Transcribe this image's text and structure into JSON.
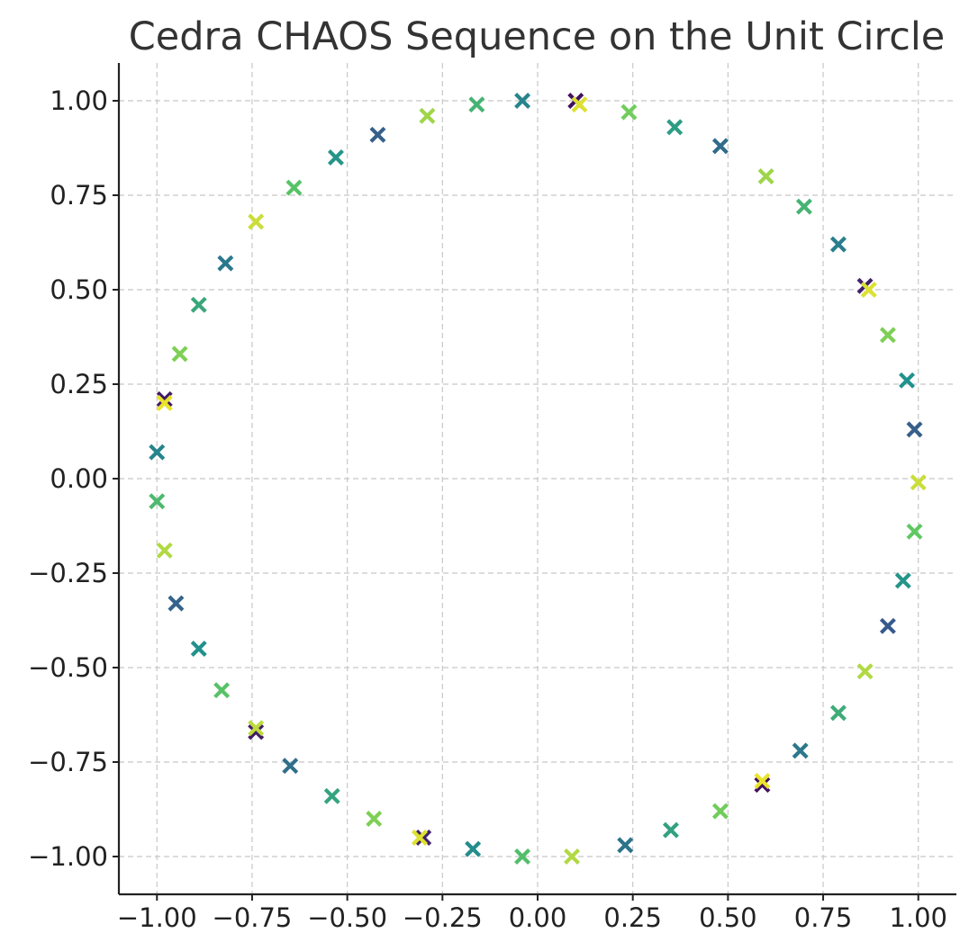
{
  "chart_data": {
    "type": "scatter",
    "title": "Cedra CHAOS Sequence on the Unit Circle",
    "xlabel": "",
    "ylabel": "",
    "xlim": [
      -1.1,
      1.1
    ],
    "ylim": [
      -1.1,
      1.1
    ],
    "grid": true,
    "marker": "x",
    "colormap": "viridis",
    "x_ticks": [
      "−1.00",
      "−0.75",
      "−0.50",
      "−0.25",
      "0.00",
      "0.25",
      "0.50",
      "0.75",
      "1.00"
    ],
    "y_ticks": [
      "1.00",
      "0.75",
      "0.50",
      "0.25",
      "0.00",
      "−0.25",
      "−0.50",
      "−0.75",
      "−1.00"
    ],
    "x_tick_values": [
      -1.0,
      -0.75,
      -0.5,
      -0.25,
      0.0,
      0.25,
      0.5,
      0.75,
      1.0
    ],
    "y_tick_values": [
      1.0,
      0.75,
      0.5,
      0.25,
      0.0,
      -0.25,
      -0.5,
      -0.75,
      -1.0
    ],
    "points": [
      {
        "x": -0.04,
        "y": 1.0,
        "c": 0.45
      },
      {
        "x": 0.1,
        "y": 1.0,
        "c": 0.05
      },
      {
        "x": 0.11,
        "y": 0.99,
        "c": 0.95
      },
      {
        "x": 0.24,
        "y": 0.97,
        "c": 0.78
      },
      {
        "x": 0.36,
        "y": 0.93,
        "c": 0.55
      },
      {
        "x": 0.48,
        "y": 0.88,
        "c": 0.35
      },
      {
        "x": 0.6,
        "y": 0.8,
        "c": 0.85
      },
      {
        "x": 0.7,
        "y": 0.72,
        "c": 0.65
      },
      {
        "x": 0.79,
        "y": 0.62,
        "c": 0.42
      },
      {
        "x": 0.86,
        "y": 0.51,
        "c": 0.1
      },
      {
        "x": 0.87,
        "y": 0.5,
        "c": 0.95
      },
      {
        "x": 0.92,
        "y": 0.38,
        "c": 0.8
      },
      {
        "x": 0.97,
        "y": 0.26,
        "c": 0.5
      },
      {
        "x": 0.99,
        "y": 0.13,
        "c": 0.3
      },
      {
        "x": 1.0,
        "y": -0.01,
        "c": 0.92
      },
      {
        "x": 0.99,
        "y": -0.14,
        "c": 0.75
      },
      {
        "x": 0.96,
        "y": -0.27,
        "c": 0.52
      },
      {
        "x": 0.92,
        "y": -0.39,
        "c": 0.28
      },
      {
        "x": 0.86,
        "y": -0.51,
        "c": 0.88
      },
      {
        "x": 0.79,
        "y": -0.62,
        "c": 0.62
      },
      {
        "x": 0.69,
        "y": -0.72,
        "c": 0.4
      },
      {
        "x": 0.59,
        "y": -0.81,
        "c": 0.05
      },
      {
        "x": 0.59,
        "y": -0.8,
        "c": 0.97
      },
      {
        "x": 0.48,
        "y": -0.88,
        "c": 0.78
      },
      {
        "x": 0.35,
        "y": -0.93,
        "c": 0.57
      },
      {
        "x": 0.23,
        "y": -0.97,
        "c": 0.38
      },
      {
        "x": 0.09,
        "y": -1.0,
        "c": 0.88
      },
      {
        "x": -0.04,
        "y": -1.0,
        "c": 0.7
      },
      {
        "x": -0.17,
        "y": -0.98,
        "c": 0.48
      },
      {
        "x": -0.3,
        "y": -0.95,
        "c": 0.1
      },
      {
        "x": -0.31,
        "y": -0.95,
        "c": 0.95
      },
      {
        "x": -0.43,
        "y": -0.9,
        "c": 0.8
      },
      {
        "x": -0.54,
        "y": -0.84,
        "c": 0.58
      },
      {
        "x": -0.65,
        "y": -0.76,
        "c": 0.36
      },
      {
        "x": -0.74,
        "y": -0.67,
        "c": 0.08
      },
      {
        "x": -0.74,
        "y": -0.66,
        "c": 0.9
      },
      {
        "x": -0.83,
        "y": -0.56,
        "c": 0.72
      },
      {
        "x": -0.89,
        "y": -0.45,
        "c": 0.5
      },
      {
        "x": -0.95,
        "y": -0.33,
        "c": 0.32
      },
      {
        "x": -0.98,
        "y": -0.19,
        "c": 0.88
      },
      {
        "x": -1.0,
        "y": -0.06,
        "c": 0.68
      },
      {
        "x": -1.0,
        "y": 0.07,
        "c": 0.45
      },
      {
        "x": -0.98,
        "y": 0.21,
        "c": 0.08
      },
      {
        "x": -0.98,
        "y": 0.2,
        "c": 0.97
      },
      {
        "x": -0.94,
        "y": 0.33,
        "c": 0.8
      },
      {
        "x": -0.89,
        "y": 0.46,
        "c": 0.6
      },
      {
        "x": -0.82,
        "y": 0.57,
        "c": 0.4
      },
      {
        "x": -0.74,
        "y": 0.68,
        "c": 0.92
      },
      {
        "x": -0.64,
        "y": 0.77,
        "c": 0.72
      },
      {
        "x": -0.53,
        "y": 0.85,
        "c": 0.52
      },
      {
        "x": -0.42,
        "y": 0.91,
        "c": 0.3
      },
      {
        "x": -0.29,
        "y": 0.96,
        "c": 0.85
      },
      {
        "x": -0.16,
        "y": 0.99,
        "c": 0.65
      }
    ]
  }
}
